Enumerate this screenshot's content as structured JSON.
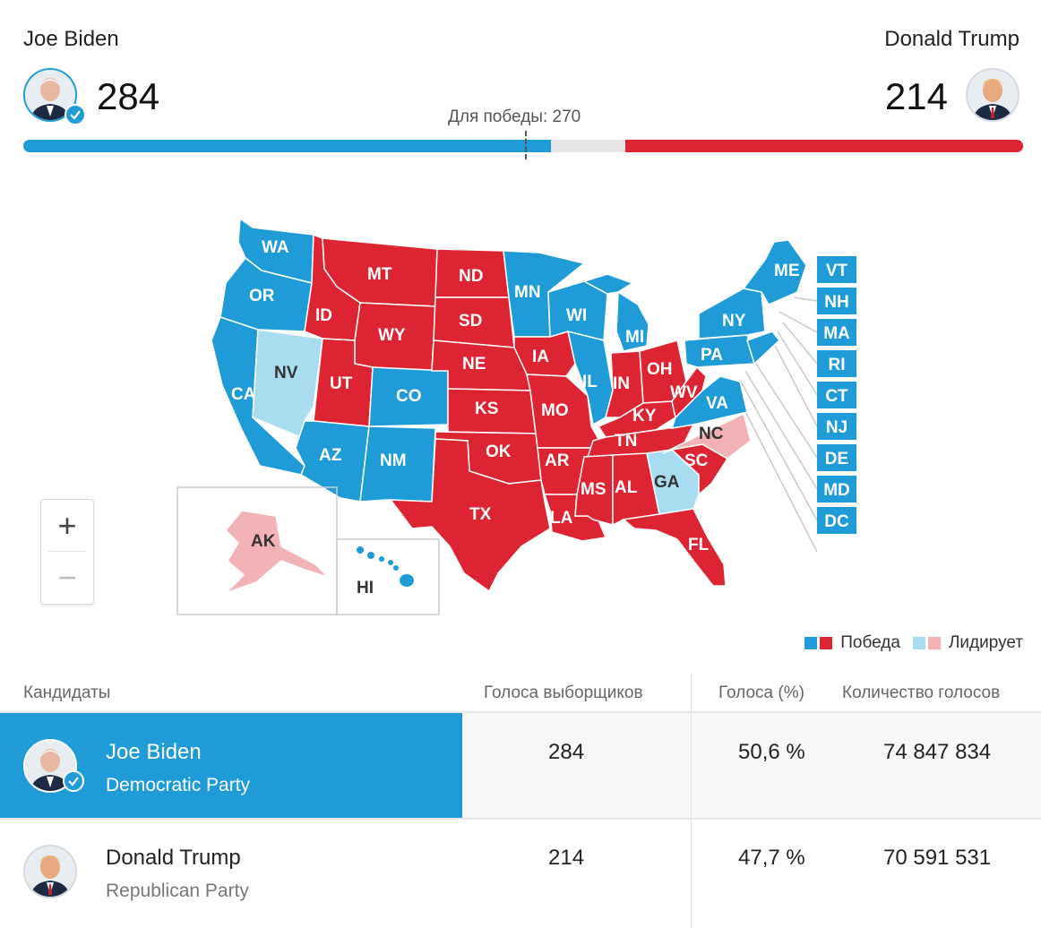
{
  "header": {
    "biden": {
      "name": "Joe Biden",
      "electoral_votes": "284"
    },
    "trump": {
      "name": "Donald Trump",
      "electoral_votes": "214"
    },
    "to_win_label": "Для победы: 270",
    "progress": {
      "biden_ev": 284,
      "trump_ev": 214,
      "total_ev": 538,
      "threshold": 270
    }
  },
  "colors": {
    "dem_win": "#1f9bd7",
    "rep_win": "#dc2433",
    "dem_lead": "#a8dcf0",
    "rep_lead": "#f2b2b6",
    "remaining": "#e6e6e6"
  },
  "map": {
    "states": [
      "WA",
      "OR",
      "CA",
      "NV",
      "ID",
      "MT",
      "WY",
      "UT",
      "AZ",
      "CO",
      "NM",
      "ND",
      "SD",
      "NE",
      "KS",
      "OK",
      "TX",
      "MN",
      "IA",
      "MO",
      "AR",
      "LA",
      "WI",
      "IL",
      "MI",
      "IN",
      "OH",
      "KY",
      "TN",
      "MS",
      "AL",
      "GA",
      "FL",
      "SC",
      "NC",
      "VA",
      "WV",
      "PA",
      "NY",
      "ME",
      "AK",
      "HI"
    ],
    "small_states": [
      "VT",
      "NH",
      "MA",
      "RI",
      "CT",
      "NJ",
      "DE",
      "MD",
      "DC"
    ]
  },
  "zoom": {
    "in_label": "+",
    "out_label": "−"
  },
  "legend": {
    "win_label": "Победа",
    "lead_label": "Лидирует"
  },
  "table": {
    "headers": {
      "candidates": "Кандидаты",
      "electoral": "Голоса выборщиков",
      "percent": "Голоса (%)",
      "count": "Количество голосов"
    },
    "rows": [
      {
        "name": "Joe Biden",
        "party": "Democratic Party",
        "electoral": "284",
        "percent": "50,6 %",
        "votes": "74 847 834"
      },
      {
        "name": "Donald Trump",
        "party": "Republican Party",
        "electoral": "214",
        "percent": "47,7 %",
        "votes": "70 591 531"
      }
    ]
  }
}
